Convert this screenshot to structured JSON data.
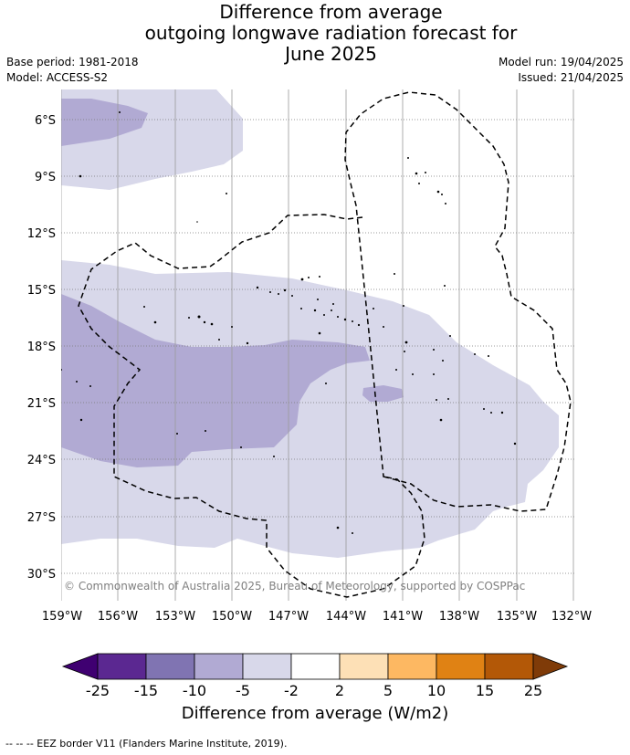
{
  "title_lines": [
    "Difference from average",
    "outgoing longwave radiation forecast for",
    "June 2025"
  ],
  "meta_left": [
    "Base period: 1981-2018",
    "Model: ACCESS-S2"
  ],
  "meta_right": [
    "Model run: 19/04/2025",
    "Issued: 21/04/2025"
  ],
  "copyright": "© Commonwealth of Australia 2025, Bureau of Meteorology, supported by COSPPac",
  "lat_labels": [
    "6°S",
    "9°S",
    "12°S",
    "15°S",
    "18°S",
    "21°S",
    "24°S",
    "27°S",
    "30°S"
  ],
  "lon_labels": [
    "159°W",
    "156°W",
    "153°W",
    "150°W",
    "147°W",
    "144°W",
    "141°W",
    "138°W",
    "135°W",
    "132°W"
  ],
  "colorbar": {
    "title": "Difference from average (W/m2)",
    "tick_labels": [
      "-25",
      "-15",
      "-10",
      "-5",
      "-2",
      "2",
      "5",
      "10",
      "15",
      "25"
    ],
    "colors": [
      "#3f0071",
      "#5b2891",
      "#8074b2",
      "#b1aad3",
      "#d8d8ea",
      "#ffffff",
      "#fde0b6",
      "#fdb862",
      "#e08214",
      "#b35807",
      "#7f3b08"
    ]
  },
  "legend_note": "--  --  -- EEZ border V11 (Flanders Marine Institute, 2019)."
}
